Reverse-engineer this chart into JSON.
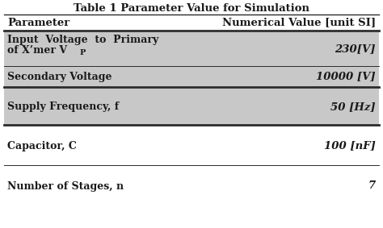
{
  "title": "Table 1 Parameter Value for Simulation",
  "col_headers": [
    "Parameter",
    "Numerical Value [unit SI]"
  ],
  "row_params": [
    "Input Voltage to Primary\nof X’mer V",
    "Secondary Voltage",
    "Supply Frequency, f",
    "Capacitor, C",
    "Number of Stages, n"
  ],
  "row_values": [
    "230[V]",
    "10000 [V]",
    "50 [Hz]",
    "100 [nF]",
    "7"
  ],
  "row_bg": [
    "#c8c8c8",
    "#c8c8c8",
    "#c8c8c8",
    "#ffffff",
    "#ffffff"
  ],
  "title_underline": true,
  "header_bg": "#ffffff",
  "border_color": "#2b2b2b",
  "text_color": "#1a1a1a",
  "font_size": 9,
  "title_font_size": 9.5,
  "fig_width": 4.74,
  "fig_height": 2.83,
  "dpi": 100
}
